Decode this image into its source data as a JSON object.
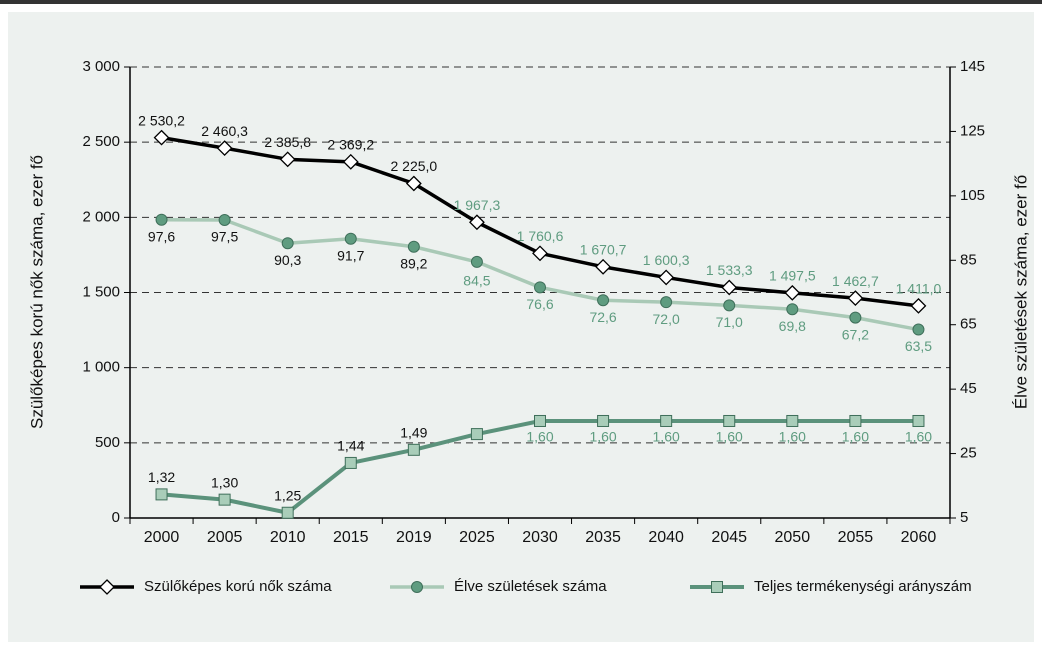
{
  "chart_data": {
    "type": "line",
    "y_label": "Szülőképes korú nők száma, ezer fő",
    "y2_label": "Élve születések száma, ezer fő",
    "categories": [
      "2000",
      "2005",
      "2010",
      "2015",
      "2019",
      "2025",
      "2030",
      "2035",
      "2040",
      "2045",
      "2050",
      "2055",
      "2060"
    ],
    "ylim": [
      0,
      3000
    ],
    "yticks": [
      0,
      500,
      {
        "value": 1000,
        "label": "1 000"
      },
      {
        "value": 1500,
        "label": "1 500"
      },
      {
        "value": 2000,
        "label": "2 000"
      },
      {
        "value": 2500,
        "label": "2 500"
      },
      {
        "value": 3000,
        "label": "3 000"
      }
    ],
    "y2lim": [
      5,
      145
    ],
    "y2ticks": [
      5,
      25,
      45,
      65,
      85,
      105,
      125,
      145
    ],
    "y3lim": [
      1.23,
      2.95
    ],
    "grid": true,
    "legend": "bottom",
    "series": [
      {
        "name": "Szülőképes korú nők száma",
        "color": "#000000",
        "marker": "diamond",
        "values": [
          2530.2,
          2460.3,
          2385.8,
          2369.2,
          2225.0,
          1967.3,
          1760.6,
          1670.7,
          1600.3,
          1533.3,
          1497.5,
          1462.7,
          1411.0
        ],
        "value_labels": [
          "2 530,2",
          "2 460,3",
          "2 385,8",
          "2 369,2",
          "2 225,0",
          "1 967,3",
          "1 760,6",
          "1 670,7",
          "1 600,3",
          "1 533,3",
          "1 497,5",
          "1 462,7",
          "1 411,0"
        ]
      },
      {
        "name": "Élve születések száma",
        "color": "#a9c9b6",
        "marker": "circle",
        "axis": "y2",
        "values": [
          97.6,
          97.5,
          90.3,
          91.7,
          89.2,
          84.5,
          76.6,
          72.6,
          72.0,
          71.0,
          69.8,
          67.2,
          63.5
        ],
        "value_labels": [
          "97,6",
          "97,5",
          "90,3",
          "91,7",
          "89,2",
          "84,5",
          "76,6",
          "72,6",
          "72,0",
          "71,0",
          "69,8",
          "67,2",
          "63,5"
        ]
      },
      {
        "name": "Teljes termékenységi arányszám",
        "color": "#5b927b",
        "marker": "square",
        "axis": "y3",
        "values": [
          1.32,
          1.3,
          1.25,
          1.44,
          1.49,
          1.55,
          1.6,
          1.6,
          1.6,
          1.6,
          1.6,
          1.6,
          1.6
        ],
        "value_labels": [
          "1,32",
          "1,30",
          "1,25",
          "1,44",
          "1,49",
          null,
          "1,60",
          "1,60",
          "1,60",
          "1,60",
          "1,60",
          "1,60",
          "1,60"
        ]
      }
    ]
  }
}
